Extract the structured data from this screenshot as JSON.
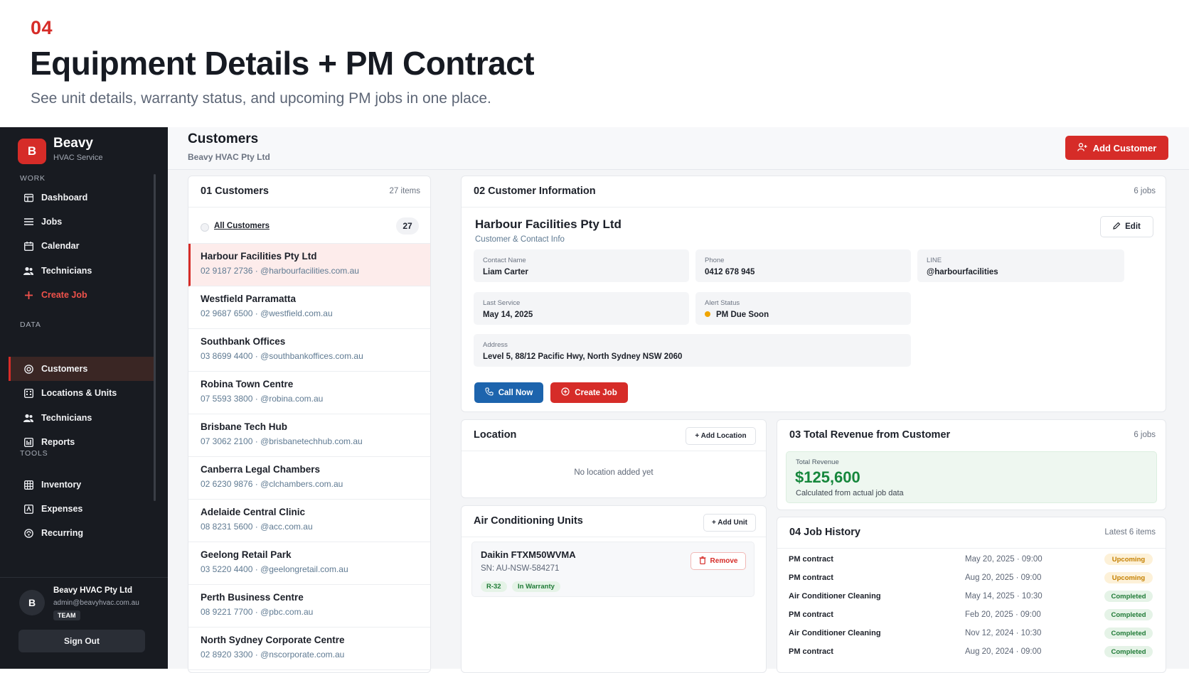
{
  "hero": {
    "number": "04",
    "title": "Equipment Details + PM Contract",
    "subtitle": "See unit details, warranty status, and upcoming PM jobs in one place."
  },
  "sidebar": {
    "logo_letter": "B",
    "brand": "Beavy",
    "brand_sub": "HVAC Service",
    "sections": {
      "work": "WORK",
      "data": "DATA",
      "tools": "TOOLS"
    },
    "work_items": [
      {
        "label": "Dashboard",
        "icon": "dashboard-icon"
      },
      {
        "label": "Jobs",
        "icon": "list-icon"
      },
      {
        "label": "Calendar",
        "icon": "calendar-icon"
      },
      {
        "label": "Technicians",
        "icon": "people-icon"
      },
      {
        "label": "Create Job",
        "icon": "plus-icon"
      }
    ],
    "data_items": [
      {
        "label": "Customers",
        "icon": "target-icon"
      },
      {
        "label": "Locations & Units",
        "icon": "building-icon"
      },
      {
        "label": "Technicians",
        "icon": "people-icon"
      },
      {
        "label": "Reports",
        "icon": "report-icon"
      }
    ],
    "tools_items": [
      {
        "label": "Inventory",
        "icon": "grid-icon"
      },
      {
        "label": "Expenses",
        "icon": "wallet-icon"
      },
      {
        "label": "Recurring",
        "icon": "recurring-icon"
      }
    ],
    "user": {
      "initial": "B",
      "name": "Beavy HVAC Pty Ltd",
      "email": "admin@beavyhvac.com.au",
      "role": "TEAM"
    },
    "sign_out": "Sign Out"
  },
  "topbar": {
    "title": "Customers",
    "subtitle": "Beavy HVAC Pty Ltd",
    "add_button": "Add Customer"
  },
  "customers": {
    "title": "01 Customers",
    "count": "27 items",
    "all_label": "All Customers",
    "all_count": "27",
    "list": [
      {
        "name": "Harbour Facilities Pty Ltd",
        "sub": "02 9187 2736 · @harbourfacilities.com.au"
      },
      {
        "name": "Westfield Parramatta",
        "sub": "02 9687 6500 · @westfield.com.au"
      },
      {
        "name": "Southbank Offices",
        "sub": "03 8699 4400 · @southbankoffices.com.au"
      },
      {
        "name": "Robina Town Centre",
        "sub": "07 5593 3800 · @robina.com.au"
      },
      {
        "name": "Brisbane Tech Hub",
        "sub": "07 3062 2100 · @brisbanetechhub.com.au"
      },
      {
        "name": "Canberra Legal Chambers",
        "sub": "02 6230 9876 · @clchambers.com.au"
      },
      {
        "name": "Adelaide Central Clinic",
        "sub": "08 8231 5600 · @acc.com.au"
      },
      {
        "name": "Geelong Retail Park",
        "sub": "03 5220 4400 · @geelongretail.com.au"
      },
      {
        "name": "Perth Business Centre",
        "sub": "08 9221 7700 · @pbc.com.au"
      },
      {
        "name": "North Sydney Corporate Centre",
        "sub": "02 8920 3300 · @nscorporate.com.au"
      }
    ]
  },
  "info": {
    "title": "02 Customer Information",
    "jobs": "6 jobs",
    "name": "Harbour Facilities Pty Ltd",
    "sub": "Customer & Contact Info",
    "edit": "Edit",
    "fields": {
      "contact_label": "Contact Name",
      "contact_value": "Liam Carter",
      "phone_label": "Phone",
      "phone_value": "0412 678 945",
      "line_label": "LINE",
      "line_value": "@harbourfacilities",
      "last_service_label": "Last Service",
      "last_service_value": "May 14, 2025",
      "alert_label": "Alert Status",
      "alert_value": "PM Due Soon",
      "address_label": "Address",
      "address_value": "Level 5, 88/12 Pacific Hwy, North Sydney NSW 2060"
    },
    "call_button": "Call Now",
    "create_job_button": "Create Job"
  },
  "location": {
    "title": "Location",
    "add_button": "+ Add Location",
    "empty": "No location added yet"
  },
  "units": {
    "title": "Air Conditioning Units",
    "add_button": "+ Add Unit",
    "unit_name": "Daikin FTXM50WVMA",
    "unit_sn": "SN: AU-NSW-584271",
    "tag_refrigerant": "R-32",
    "tag_warranty": "In Warranty",
    "remove_button": "Remove"
  },
  "revenue": {
    "title": "03 Total Revenue from Customer",
    "jobs": "6 jobs",
    "label": "Total Revenue",
    "value": "$125,600",
    "note": "Calculated from actual job data"
  },
  "history": {
    "title": "04 Job History",
    "meta": "Latest 6 items",
    "rows": [
      {
        "name": "PM contract",
        "date": "May 20, 2025 · 09:00",
        "status": "Upcoming"
      },
      {
        "name": "PM contract",
        "date": "Aug 20, 2025 · 09:00",
        "status": "Upcoming"
      },
      {
        "name": "Air Conditioner Cleaning",
        "date": "May 14, 2025 · 10:30",
        "status": "Completed"
      },
      {
        "name": "PM contract",
        "date": "Feb 20, 2025 · 09:00",
        "status": "Completed"
      },
      {
        "name": "Air Conditioner Cleaning",
        "date": "Nov 12, 2024 · 10:30",
        "status": "Completed"
      },
      {
        "name": "PM contract",
        "date": "Aug 20, 2024 · 09:00",
        "status": "Completed"
      }
    ]
  },
  "colors": {
    "accent": "#d62c28",
    "call_blue": "#1d64ad",
    "sidebar_bg": "#181b21",
    "revenue_green": "#16873c",
    "upcoming": "#c58000",
    "completed": "#1f7a36"
  }
}
